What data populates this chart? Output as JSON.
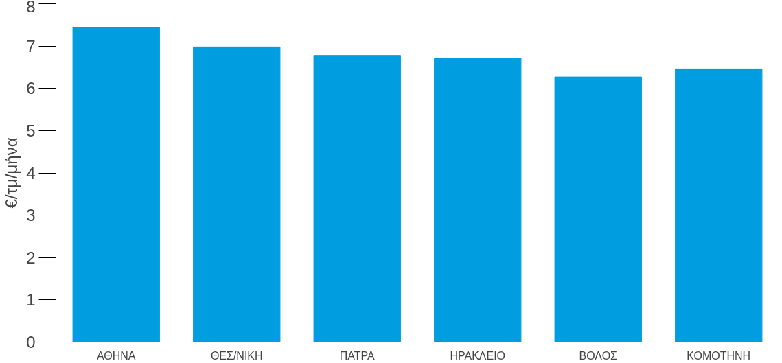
{
  "chart_data": {
    "type": "bar",
    "ylabel": "€/τμ/μήνα",
    "categories": [
      "ΑΘΗΝΑ",
      "ΘΕΣ/ΝΙΚΗ",
      "ΠΑΤΡΑ",
      "ΗΡΑΚΛΕΙΟ",
      "ΒΟΛΟΣ",
      "ΚΟΜΟΤΗΝΗ"
    ],
    "values": [
      7.44,
      6.98,
      6.78,
      6.71,
      6.27,
      6.46
    ],
    "color": "#009ee0",
    "ylim": [
      0,
      8
    ],
    "yticks": [
      0,
      1,
      2,
      3,
      4,
      5,
      6,
      7,
      8
    ],
    "grid": false
  }
}
